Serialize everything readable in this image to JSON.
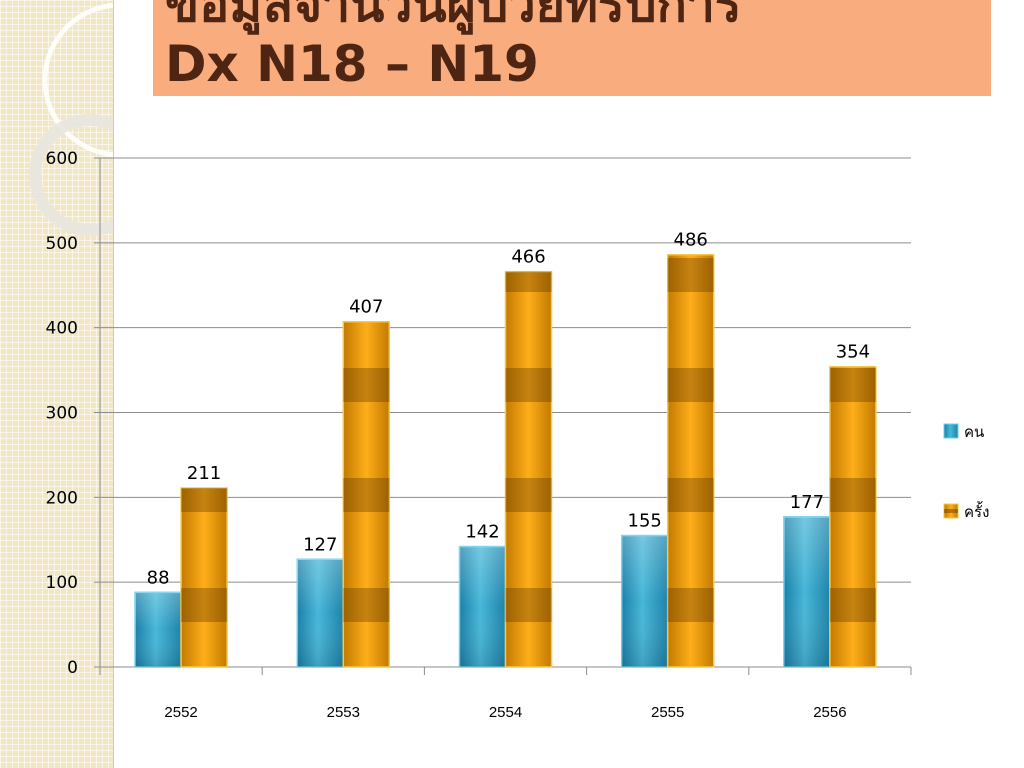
{
  "slide": {
    "title_line1": "ข้อมูลจำนวนผู้ป่วยที่รับการ",
    "title_line2": "Dx N18 – N19"
  },
  "colors": {
    "title_bar": "#f9ad7e",
    "title_text": "#4e2413",
    "series_1": "#3aa6c8",
    "series_2": "#e59a00",
    "side_panel": "#f2e6c4"
  },
  "chart_data": {
    "type": "bar",
    "categories": [
      "2552",
      "2553",
      "2554",
      "2555",
      "2556"
    ],
    "series": [
      {
        "name": "คน",
        "values": [
          88,
          127,
          142,
          155,
          177
        ]
      },
      {
        "name": "ครั้ง",
        "values": [
          211,
          407,
          466,
          486,
          354
        ]
      }
    ],
    "ylim": [
      0,
      600
    ],
    "yticks": [
      0,
      100,
      200,
      300,
      400,
      500,
      600
    ],
    "grid": true,
    "legend": "right",
    "data_labels": true
  }
}
